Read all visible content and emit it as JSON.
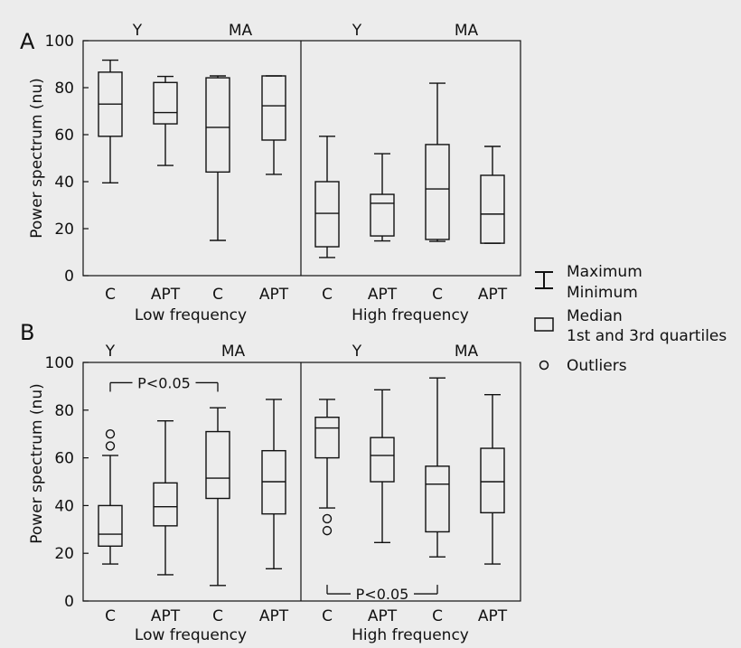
{
  "legend": {
    "maxmin": [
      "Maximum",
      "Minimum"
    ],
    "quartiles": [
      "Median",
      "1st and 3rd quartiles"
    ],
    "outliers": "Outliers"
  },
  "chart_data": [
    {
      "type": "box",
      "panel_label": "A",
      "ylabel": "Power spectrum (nu)",
      "ylim": [
        0,
        100
      ],
      "yticks": [
        0,
        20,
        40,
        60,
        80,
        100
      ],
      "groups_top": [
        "Y",
        "MA",
        "Y",
        "MA"
      ],
      "xlabels_bottom": [
        "Low frequency",
        "High frequency"
      ],
      "categories": [
        "C",
        "APT",
        "C",
        "APT",
        "C",
        "APT",
        "C",
        "APT"
      ],
      "boxes": [
        {
          "min": 39.5,
          "q1": 59.3,
          "median": 73.0,
          "q3": 86.6,
          "max": 91.7,
          "outliers": []
        },
        {
          "min": 46.9,
          "q1": 64.6,
          "median": 69.4,
          "q3": 82.2,
          "max": 84.8,
          "outliers": []
        },
        {
          "min": 15.0,
          "q1": 44.1,
          "median": 63.1,
          "q3": 84.2,
          "max": 85.0,
          "outliers": []
        },
        {
          "min": 43.1,
          "q1": 57.7,
          "median": 72.3,
          "q3": 85.0,
          "max": 85.0,
          "outliers": []
        },
        {
          "min": 7.7,
          "q1": 12.3,
          "median": 26.5,
          "q3": 40.0,
          "max": 59.3,
          "outliers": []
        },
        {
          "min": 14.8,
          "q1": 16.9,
          "median": 30.8,
          "q3": 34.6,
          "max": 51.9,
          "outliers": []
        },
        {
          "min": 14.6,
          "q1": 15.4,
          "median": 36.9,
          "q3": 55.8,
          "max": 81.9,
          "outliers": []
        },
        {
          "min": 13.8,
          "q1": 13.8,
          "median": 26.2,
          "q3": 42.7,
          "max": 55.0,
          "outliers": []
        }
      ],
      "annotations": []
    },
    {
      "type": "box",
      "panel_label": "B",
      "ylabel": "Power spectrum (nu)",
      "ylim": [
        0,
        100
      ],
      "yticks": [
        0,
        20,
        40,
        60,
        80,
        100
      ],
      "groups_top": [
        "Y",
        "MA",
        "Y",
        "MA"
      ],
      "xlabels_bottom": [
        "Low frequency",
        "High frequency"
      ],
      "categories": [
        "C",
        "APT",
        "C",
        "APT",
        "C",
        "APT",
        "C",
        "APT"
      ],
      "boxes": [
        {
          "min": 15.5,
          "q1": 23.0,
          "median": 28.0,
          "q3": 40.0,
          "max": 61.0,
          "outliers": [
            65.0,
            70.0
          ]
        },
        {
          "min": 11.0,
          "q1": 31.5,
          "median": 39.5,
          "q3": 49.5,
          "max": 75.5,
          "outliers": []
        },
        {
          "min": 6.5,
          "q1": 43.0,
          "median": 51.5,
          "q3": 71.0,
          "max": 81.0,
          "outliers": []
        },
        {
          "min": 13.5,
          "q1": 36.5,
          "median": 50.0,
          "q3": 63.0,
          "max": 84.5,
          "outliers": []
        },
        {
          "min": 39.0,
          "q1": 60.0,
          "median": 72.5,
          "q3": 77.0,
          "max": 84.5,
          "outliers": [
            29.5,
            34.5
          ]
        },
        {
          "min": 24.5,
          "q1": 50.0,
          "median": 61.0,
          "q3": 68.5,
          "max": 88.5,
          "outliers": []
        },
        {
          "min": 18.5,
          "q1": 29.0,
          "median": 49.0,
          "q3": 56.5,
          "max": 93.5,
          "outliers": []
        },
        {
          "min": 15.5,
          "q1": 37.0,
          "median": 50.0,
          "q3": 64.0,
          "max": 86.5,
          "outliers": []
        }
      ],
      "annotations": [
        {
          "text": "P<0.05",
          "from": 0,
          "to": 2,
          "y": 91.5,
          "side": "top"
        },
        {
          "text": "P<0.05",
          "from": 4,
          "to": 6,
          "y": 3.0,
          "side": "bottom"
        }
      ]
    }
  ]
}
